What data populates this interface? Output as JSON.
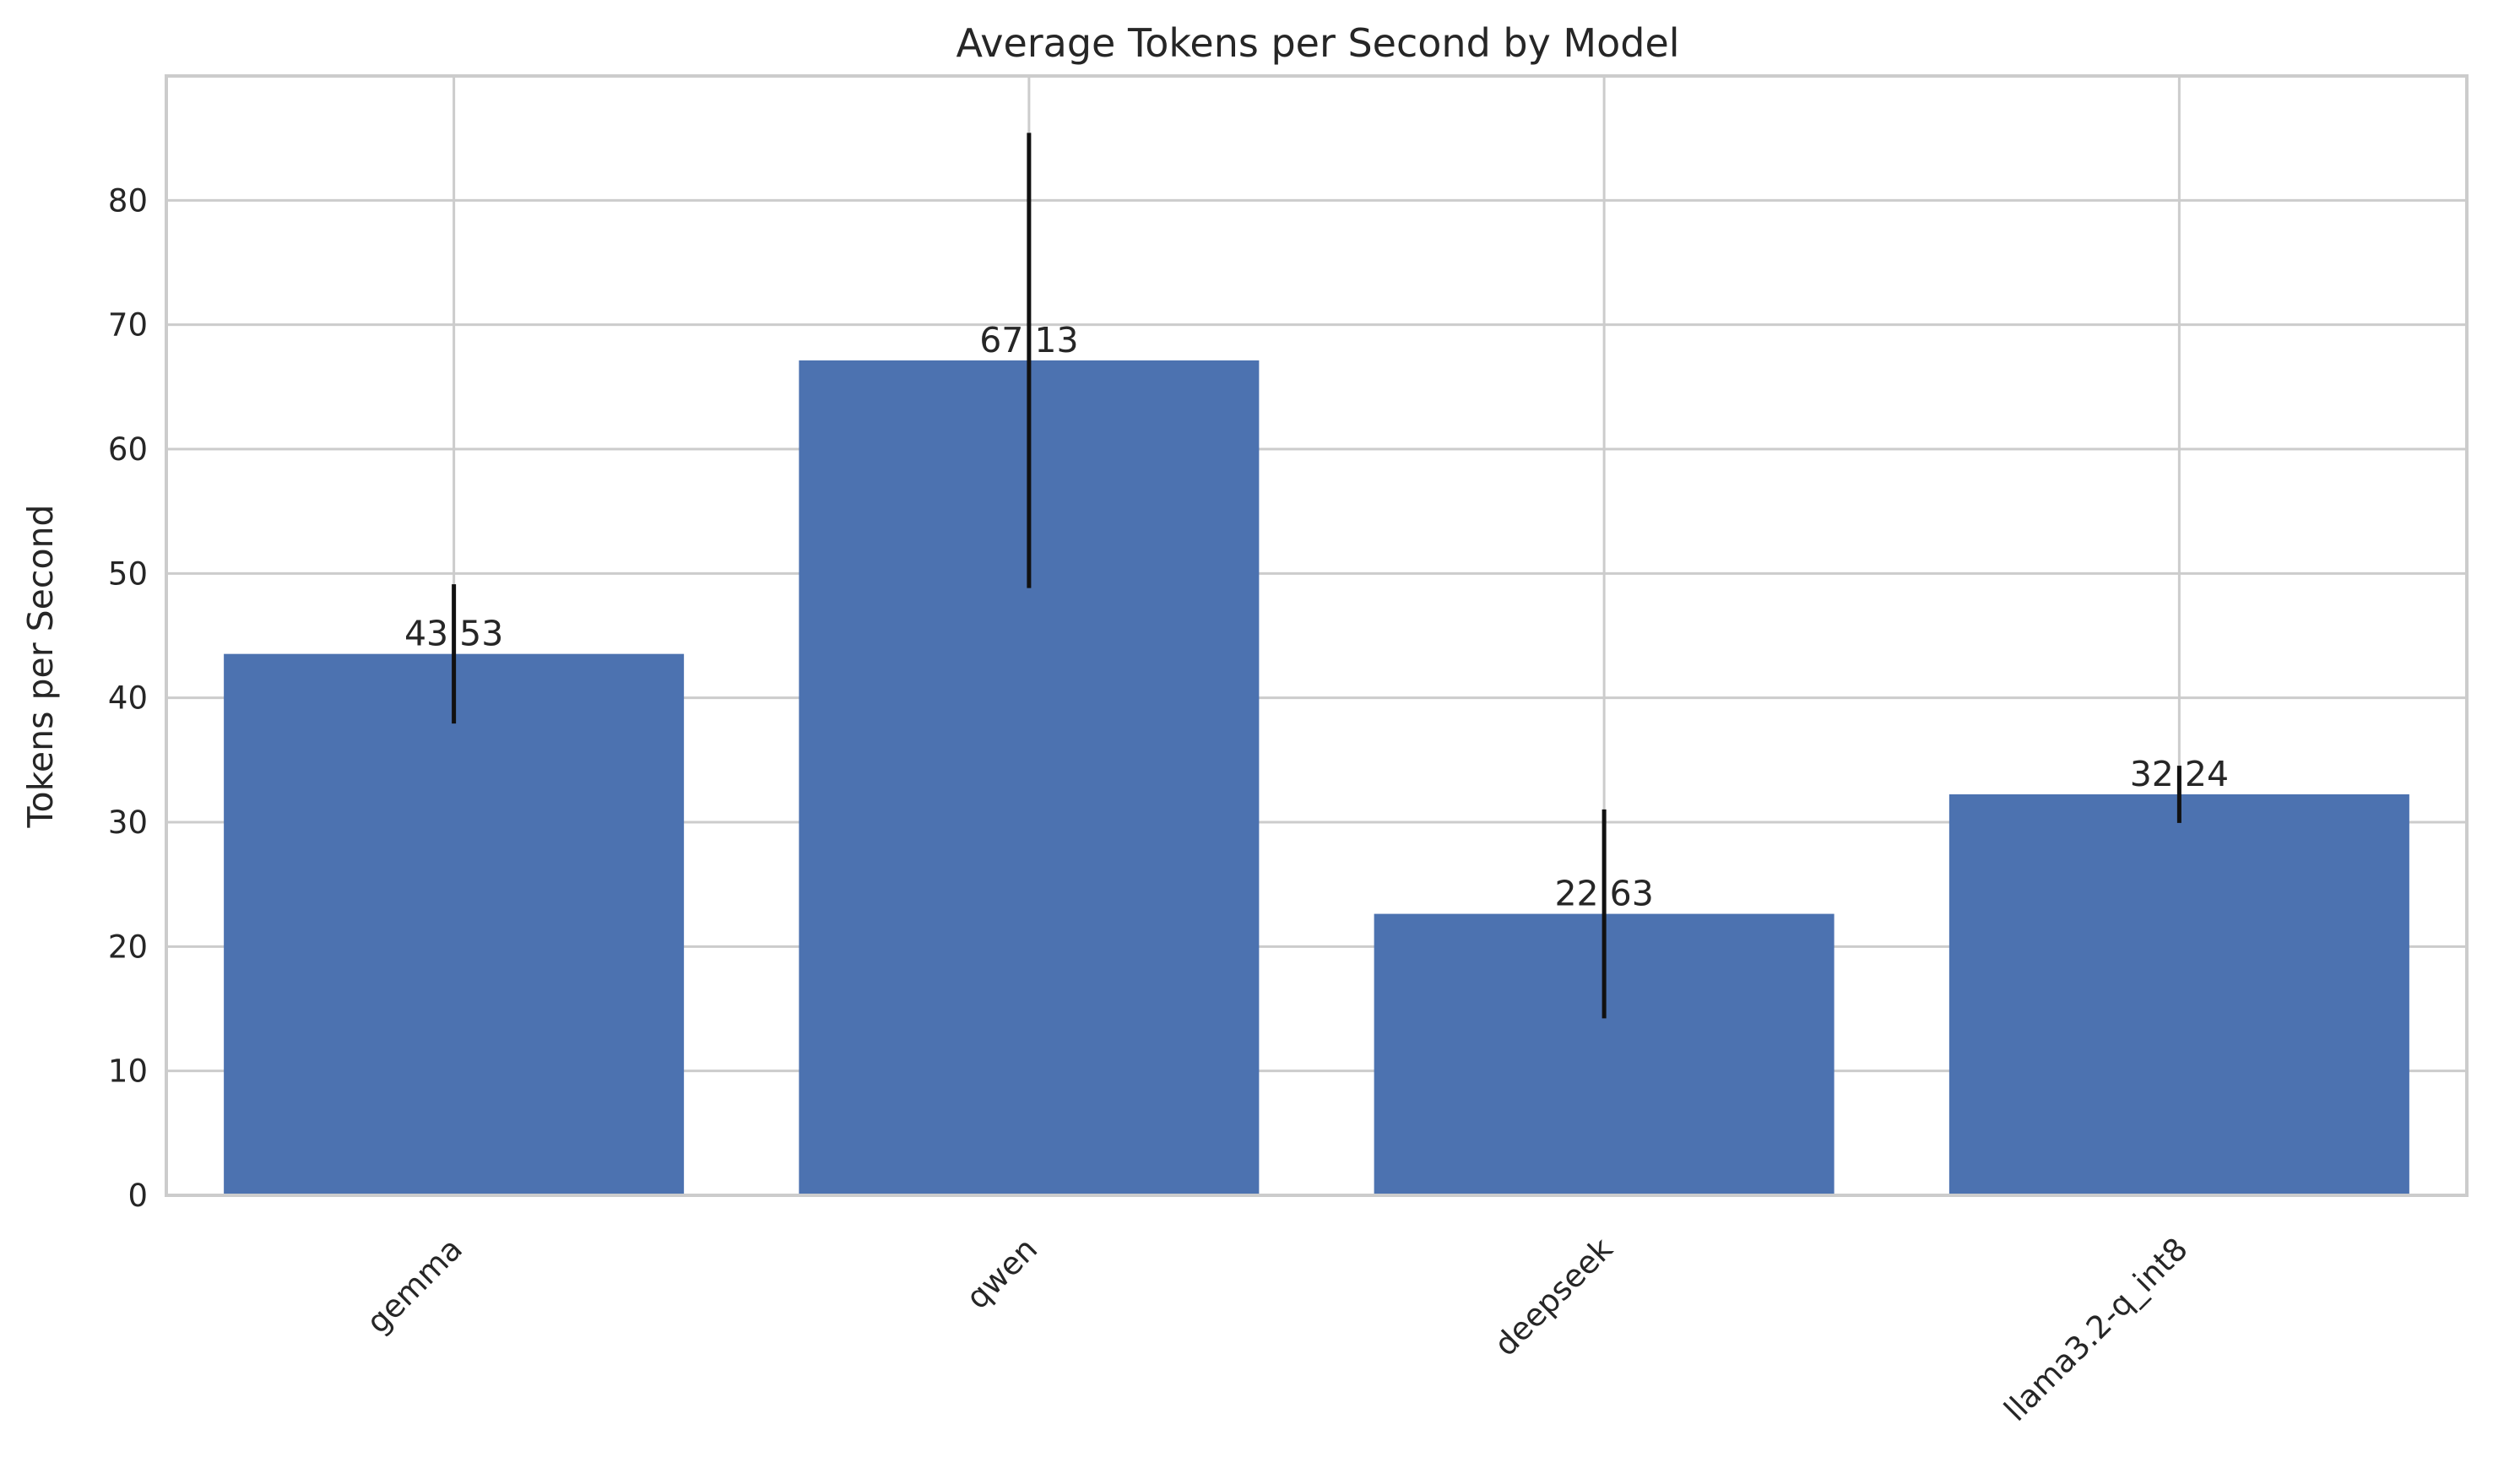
{
  "chart_data": {
    "type": "bar",
    "title": "Average Tokens per Second by Model",
    "xlabel": "",
    "ylabel": "Tokens per Second",
    "categories": [
      "gemma",
      "qwen",
      "deepseek",
      "llama3.2-q_int8"
    ],
    "values": [
      43.53,
      67.13,
      22.63,
      32.24
    ],
    "value_labels": [
      "43.53",
      "67.13",
      "22.63",
      "32.24"
    ],
    "error_bars": [
      5.6,
      18.3,
      8.4,
      2.3
    ],
    "ylim": [
      0,
      90
    ],
    "yticks": [
      0,
      10,
      20,
      30,
      40,
      50,
      60,
      70,
      80
    ],
    "grid": true,
    "bar_color": "#4c72b0",
    "error_color": "#111111",
    "grid_color": "#cccccc",
    "x_tick_rotation": "45 degrees"
  }
}
